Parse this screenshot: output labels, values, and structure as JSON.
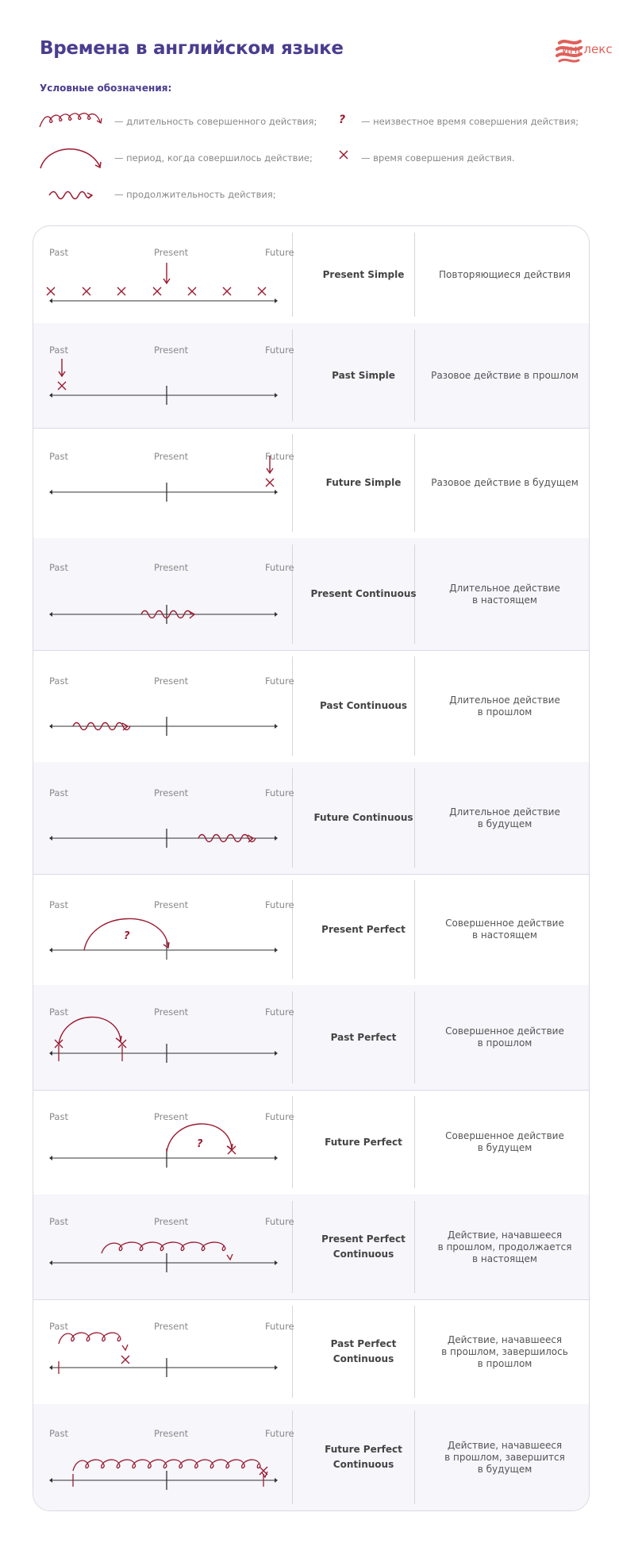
{
  "header": {
    "title": "Времена в английском языке",
    "brand": "инглекс"
  },
  "legend": {
    "title": "Условные обозначения:",
    "items": [
      {
        "icon": "loops-arrow-icon",
        "text": "— длительность совершенного действия;"
      },
      {
        "icon": "arc-arrow-icon",
        "text": "— период, когда совершилось действие;"
      },
      {
        "icon": "wave-arrow-icon",
        "text": "— продолжительность действия;"
      },
      {
        "icon": "question-mark-icon",
        "text": "— неизвестное время совершения действия;"
      },
      {
        "icon": "cross-mark-icon",
        "text": "— время совершения действия."
      }
    ]
  },
  "timeline_labels": {
    "past": "Past",
    "present": "Present",
    "future": "Future"
  },
  "colors": {
    "accent": "#9b1b30",
    "title": "#4a3d8f",
    "brand": "#e0605a"
  },
  "rows": [
    {
      "tense": "Present Simple",
      "desc": [
        "Повторяющиеся действия"
      ]
    },
    {
      "tense": "Past Simple",
      "desc": [
        "Разовое действие в прошлом"
      ]
    },
    {
      "tense": "Future Simple",
      "desc": [
        "Разовое действие в будущем"
      ]
    },
    {
      "tense": "Present Continuous",
      "desc": [
        "Длительное действие",
        "в настоящем"
      ]
    },
    {
      "tense": "Past Continuous",
      "desc": [
        "Длительное действие",
        "в прошлом"
      ]
    },
    {
      "tense": "Future Continuous",
      "desc": [
        "Длительное действие",
        "в будущем"
      ]
    },
    {
      "tense": "Present Perfect",
      "desc": [
        "Совершенное действие",
        "в настоящем"
      ]
    },
    {
      "tense": "Past Perfect",
      "desc": [
        "Совершенное действие",
        "в прошлом"
      ]
    },
    {
      "tense": "Future Perfect",
      "desc": [
        "Совершенное действие",
        "в будущем"
      ]
    },
    {
      "tense": [
        "Present Perfect",
        "Continuous"
      ],
      "desc": [
        "Действие, начавшееся",
        "в прошлом, продолжается",
        "в настоящем"
      ]
    },
    {
      "tense": [
        "Past Perfect",
        "Continuous"
      ],
      "desc": [
        "Действие, начавшееся",
        "в прошлом, завершилось",
        "в прошлом"
      ]
    },
    {
      "tense": [
        "Future Perfect",
        "Continuous"
      ],
      "desc": [
        "Действие, начавшееся",
        "в прошлом, завершится",
        "в будущем"
      ]
    }
  ]
}
